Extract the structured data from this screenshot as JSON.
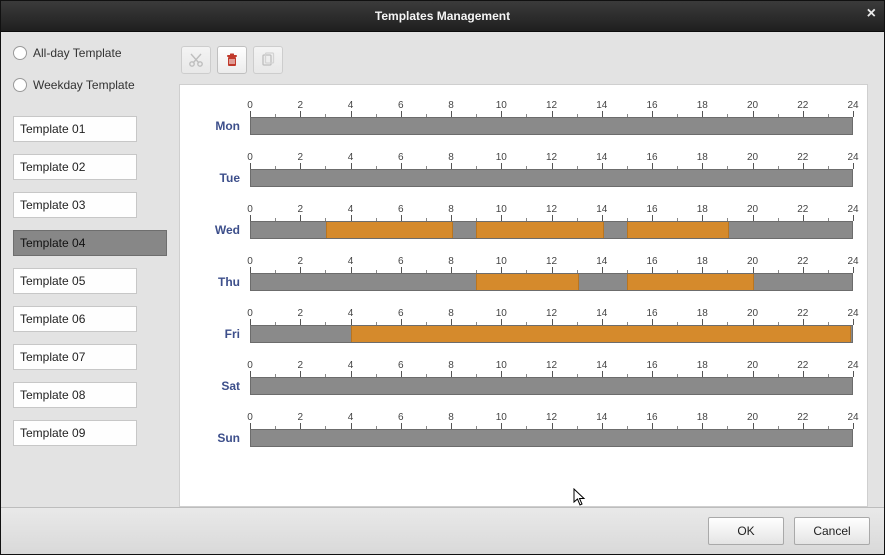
{
  "title": "Templates Management",
  "radios": [
    {
      "label": "All-day Template",
      "checked": false
    },
    {
      "label": "Weekday Template",
      "checked": false
    }
  ],
  "templates": [
    {
      "label": "Template 01",
      "selected": false
    },
    {
      "label": "Template 02",
      "selected": false
    },
    {
      "label": "Template 03",
      "selected": false
    },
    {
      "label": "Template 04",
      "selected": true
    },
    {
      "label": "Template 05",
      "selected": false
    },
    {
      "label": "Template 06",
      "selected": false
    },
    {
      "label": "Template 07",
      "selected": false
    },
    {
      "label": "Template 08",
      "selected": false
    },
    {
      "label": "Template 09",
      "selected": false
    }
  ],
  "schedule": {
    "hours": 24,
    "major_step": 2,
    "track_color": "#8a8a8a",
    "segment_color": "#d58a2c",
    "day_label_color": "#3d4f8b",
    "days": [
      {
        "name": "Mon",
        "segments": []
      },
      {
        "name": "Tue",
        "segments": []
      },
      {
        "name": "Wed",
        "segments": [
          {
            "start": 3,
            "end": 8
          },
          {
            "start": 9,
            "end": 14
          },
          {
            "start": 15,
            "end": 19
          }
        ]
      },
      {
        "name": "Thu",
        "segments": [
          {
            "start": 9,
            "end": 13
          },
          {
            "start": 15,
            "end": 20
          }
        ]
      },
      {
        "name": "Fri",
        "segments": [
          {
            "start": 4,
            "end": 23.9
          }
        ]
      },
      {
        "name": "Sat",
        "segments": []
      },
      {
        "name": "Sun",
        "segments": []
      }
    ]
  },
  "buttons": {
    "ok": "OK",
    "cancel": "Cancel"
  }
}
